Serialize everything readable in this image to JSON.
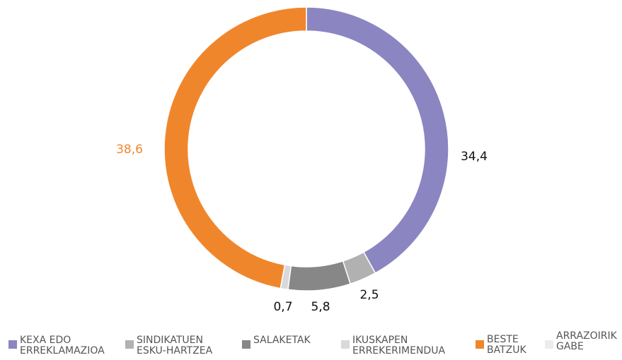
{
  "chart_data": {
    "type": "donut",
    "categories": [
      "KEXA EDO ERREKLAMAZIOA",
      "SINDIKATUEN ESKU-HARTZEA",
      "SALAKETAK",
      "IKUSKAPEN ERREKERIMENDUA",
      "BESTE BATZUK",
      "ARRAZOIRIK GABE"
    ],
    "values": [
      34.4,
      2.5,
      5.8,
      0.7,
      38.6,
      null
    ],
    "value_labels": [
      "34,4",
      "2,5",
      "5,8",
      "0,7",
      "38,6",
      null
    ],
    "colors": [
      "#8b85c1",
      "#b1b1b1",
      "#878787",
      "#d9d9d9",
      "#f0862b",
      "#ececec"
    ],
    "legend": "bottom"
  }
}
